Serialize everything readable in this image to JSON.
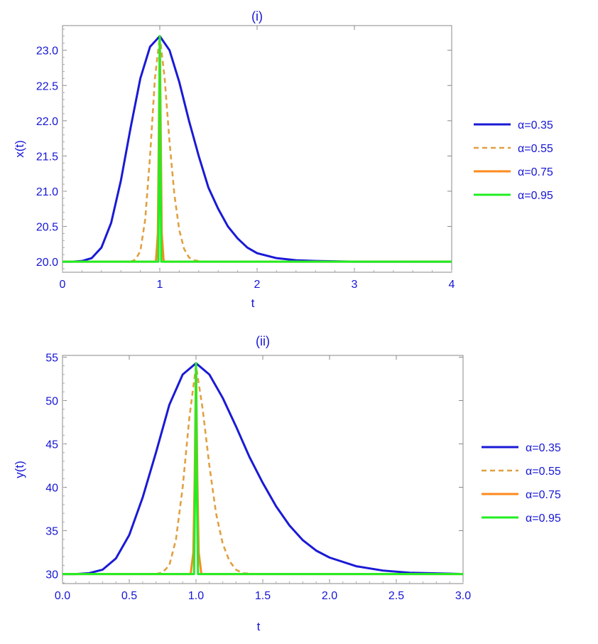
{
  "chart_data": [
    {
      "type": "line",
      "title": "(i)",
      "xlabel": "t",
      "ylabel": "x(t)",
      "xlim": [
        0,
        4
      ],
      "ylim": [
        19.85,
        23.35
      ],
      "xticks": [
        0,
        1,
        2,
        3,
        4
      ],
      "xtick_labels": [
        "0",
        "1",
        "2",
        "3",
        "4"
      ],
      "yticks": [
        20.0,
        20.5,
        21.0,
        21.5,
        22.0,
        22.5,
        23.0
      ],
      "ytick_labels": [
        "20.0",
        "20.5",
        "21.0",
        "21.5",
        "22.0",
        "22.5",
        "23.0"
      ],
      "grid": false,
      "legend_position": "right",
      "series": [
        {
          "name": "α=0.35",
          "color": "#1a1ad6",
          "dash": "solid",
          "x": [
            0,
            0.1,
            0.2,
            0.3,
            0.4,
            0.5,
            0.6,
            0.7,
            0.8,
            0.9,
            1.0,
            1.1,
            1.2,
            1.3,
            1.4,
            1.5,
            1.6,
            1.7,
            1.8,
            1.9,
            2.0,
            2.2,
            2.4,
            2.6,
            3.0,
            4.0
          ],
          "y": [
            20.0,
            20.0,
            20.01,
            20.05,
            20.2,
            20.55,
            21.15,
            21.9,
            22.6,
            23.05,
            23.2,
            23.0,
            22.55,
            22.0,
            21.5,
            21.05,
            20.75,
            20.5,
            20.33,
            20.2,
            20.12,
            20.05,
            20.02,
            20.01,
            20.0,
            20.0
          ]
        },
        {
          "name": "α=0.55",
          "color": "#e0a040",
          "dash": "dashed",
          "x": [
            0,
            0.7,
            0.75,
            0.8,
            0.85,
            0.9,
            0.95,
            1.0,
            1.05,
            1.1,
            1.15,
            1.2,
            1.25,
            1.3,
            1.35,
            1.45,
            4.0
          ],
          "y": [
            20.0,
            20.0,
            20.03,
            20.15,
            20.6,
            21.5,
            22.6,
            23.2,
            22.6,
            21.7,
            20.95,
            20.45,
            20.18,
            20.06,
            20.02,
            20.0,
            20.0
          ]
        },
        {
          "name": "α=0.75",
          "color": "#ff8a1e",
          "dash": "solid",
          "x": [
            0,
            0.96,
            0.98,
            0.99,
            1.0,
            1.01,
            1.02,
            1.04,
            4.0
          ],
          "y": [
            20.0,
            20.0,
            20.4,
            21.8,
            23.2,
            21.8,
            20.4,
            20.0,
            20.0
          ]
        },
        {
          "name": "α=0.95",
          "color": "#22ee22",
          "dash": "solid",
          "x": [
            0,
            0.985,
            0.995,
            1.0,
            1.005,
            1.015,
            4.0
          ],
          "y": [
            20.0,
            20.0,
            21.8,
            23.2,
            21.8,
            20.0,
            20.0
          ]
        }
      ]
    },
    {
      "type": "line",
      "title": "(ii)",
      "xlabel": "t",
      "ylabel": "y(t)",
      "xlim": [
        0,
        3
      ],
      "ylim": [
        28.9,
        55.2
      ],
      "xticks": [
        0,
        0.5,
        1.0,
        1.5,
        2.0,
        2.5,
        3.0
      ],
      "xtick_labels": [
        "0.0",
        "0.5",
        "1.0",
        "1.5",
        "2.0",
        "2.5",
        "3.0"
      ],
      "yticks": [
        30,
        35,
        40,
        45,
        50,
        55
      ],
      "ytick_labels": [
        "30",
        "35",
        "40",
        "45",
        "50",
        "55"
      ],
      "grid": false,
      "legend_position": "right",
      "series": [
        {
          "name": "α=0.35",
          "color": "#1a1ad6",
          "dash": "solid",
          "x": [
            0,
            0.1,
            0.2,
            0.3,
            0.4,
            0.5,
            0.6,
            0.7,
            0.8,
            0.9,
            1.0,
            1.1,
            1.2,
            1.3,
            1.4,
            1.5,
            1.6,
            1.7,
            1.8,
            1.9,
            2.0,
            2.2,
            2.4,
            2.6,
            3.0
          ],
          "y": [
            30.0,
            30.0,
            30.1,
            30.5,
            31.8,
            34.5,
            38.8,
            44.0,
            49.5,
            53.0,
            54.3,
            53.0,
            50.3,
            47.0,
            43.5,
            40.5,
            37.8,
            35.6,
            33.9,
            32.7,
            31.9,
            30.9,
            30.4,
            30.15,
            30.0
          ]
        },
        {
          "name": "α=0.55",
          "color": "#e0a040",
          "dash": "dashed",
          "x": [
            0,
            0.7,
            0.75,
            0.8,
            0.85,
            0.9,
            0.95,
            1.0,
            1.05,
            1.1,
            1.15,
            1.2,
            1.25,
            1.3,
            1.35,
            1.45,
            3.0
          ],
          "y": [
            30.0,
            30.0,
            30.2,
            31.0,
            34.0,
            40.0,
            48.0,
            54.0,
            49.0,
            42.5,
            37.0,
            33.5,
            31.5,
            30.5,
            30.1,
            30.0,
            30.0
          ]
        },
        {
          "name": "α=0.75",
          "color": "#ff8a1e",
          "dash": "solid",
          "x": [
            0,
            0.96,
            0.98,
            0.99,
            1.0,
            1.01,
            1.02,
            1.04,
            3.0
          ],
          "y": [
            30.0,
            30.0,
            32.5,
            41.0,
            54.3,
            41.0,
            32.5,
            30.0,
            30.0
          ]
        },
        {
          "name": "α=0.95",
          "color": "#22ee22",
          "dash": "solid",
          "x": [
            0,
            0.985,
            0.995,
            1.0,
            1.005,
            1.015,
            3.0
          ],
          "y": [
            30.0,
            30.0,
            42.0,
            54.3,
            42.0,
            30.0,
            30.0
          ]
        }
      ]
    }
  ]
}
